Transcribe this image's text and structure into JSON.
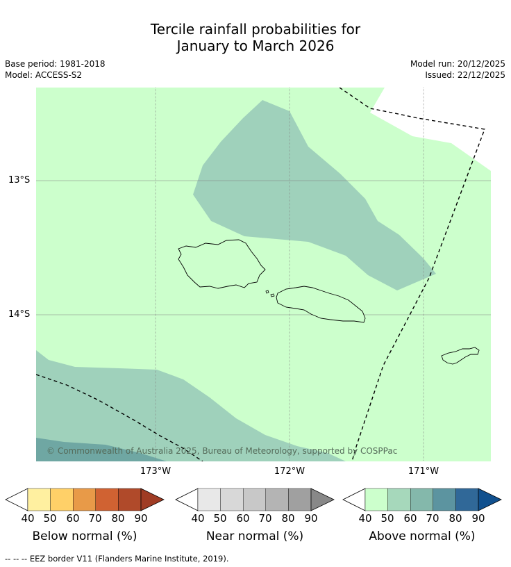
{
  "title": {
    "line1": "Tercile rainfall probabilities for",
    "line2": "January to March 2026"
  },
  "meta_left": {
    "base_period": "Base period: 1981-2018",
    "model": "Model: ACCESS-S2"
  },
  "meta_right": {
    "model_run": "Model run: 20/12/2025",
    "issued": "Issued: 22/12/2025"
  },
  "map": {
    "lat_labels": [
      "13°S",
      "14°S"
    ],
    "lon_labels": [
      "173°W",
      "172°W",
      "171°W"
    ],
    "copyright": "© Commonwealth of Australia 2025, Bureau of Meteorology, supported by COSPPac",
    "colors": {
      "above_40_50": "#ccffcc",
      "above_50_60": "#9fd1bb",
      "above_60_70": "#6fa7a3"
    }
  },
  "colorbars": [
    {
      "label": "Below normal (%)",
      "ticks": [
        "40",
        "50",
        "60",
        "70",
        "80",
        "90"
      ],
      "colors": [
        "#ffffff",
        "#fff0a0",
        "#ffd068",
        "#e89a48",
        "#d06232",
        "#b04a2a",
        "#a03c24"
      ]
    },
    {
      "label": "Near normal (%)",
      "ticks": [
        "40",
        "50",
        "60",
        "70",
        "80",
        "90"
      ],
      "colors": [
        "#ffffff",
        "#e8e8e8",
        "#d8d8d8",
        "#c8c8c8",
        "#b4b4b4",
        "#a0a0a0",
        "#888888"
      ]
    },
    {
      "label": "Above normal (%)",
      "ticks": [
        "40",
        "50",
        "60",
        "70",
        "80",
        "90"
      ],
      "colors": [
        "#ffffff",
        "#ccffcc",
        "#a6d8bb",
        "#84b8ab",
        "#5c94a0",
        "#306898",
        "#10508e"
      ]
    }
  ],
  "footer": "--  --  -- EEZ border V11 (Flanders Marine Institute, 2019)."
}
